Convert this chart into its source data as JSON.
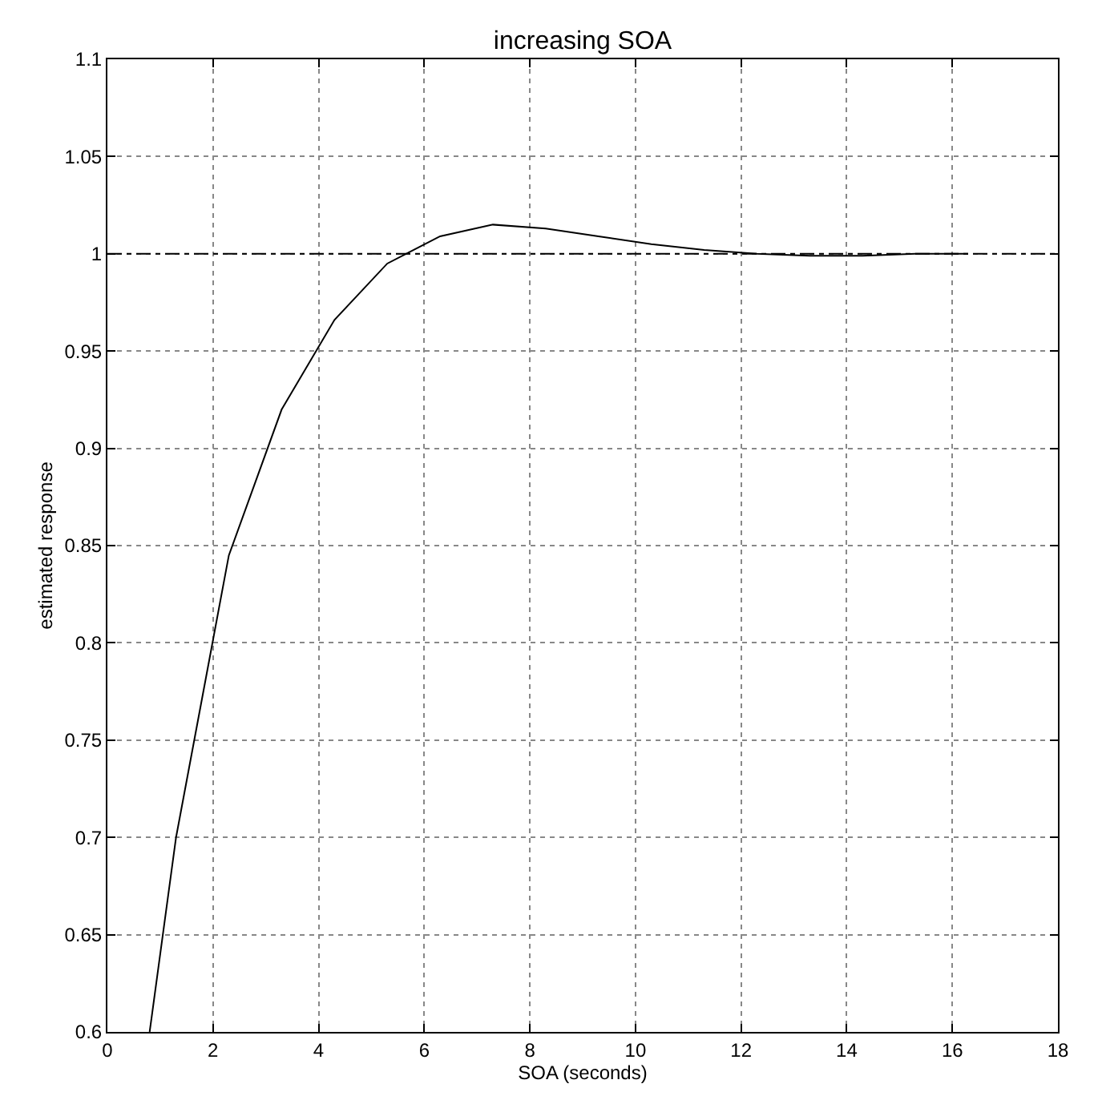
{
  "chart_data": {
    "type": "line",
    "title": "increasing SOA",
    "xlabel": "SOA (seconds)",
    "ylabel": "estimated response",
    "x": [
      0.8,
      1.3,
      2.3,
      3.3,
      4.3,
      5.3,
      6.3,
      7.3,
      8.3,
      9.3,
      10.3,
      11.3,
      12.3,
      13.3,
      14.3,
      15.3,
      16.3
    ],
    "series": [
      {
        "color": "#000000",
        "values": [
          0.6,
          0.7,
          0.845,
          0.92,
          0.966,
          0.995,
          1.009,
          1.015,
          1.013,
          1.009,
          1.005,
          1.002,
          1.0,
          0.999,
          0.999,
          1.0,
          1.0
        ]
      }
    ],
    "xlim": [
      0,
      18
    ],
    "xticks": [
      0,
      2,
      4,
      6,
      8,
      10,
      12,
      14,
      16,
      18
    ],
    "ylim": [
      0.6,
      1.1
    ],
    "yticks": [
      0.6,
      0.65,
      0.7,
      0.75,
      0.8,
      0.85,
      0.9,
      0.95,
      1,
      1.05,
      1.1
    ],
    "ref_lines": [
      {
        "axis": "y",
        "value": 1,
        "label": null,
        "color": "#000000",
        "line_style": "dashed"
      }
    ],
    "grid": true,
    "marker": "none",
    "line_style": "solid"
  }
}
